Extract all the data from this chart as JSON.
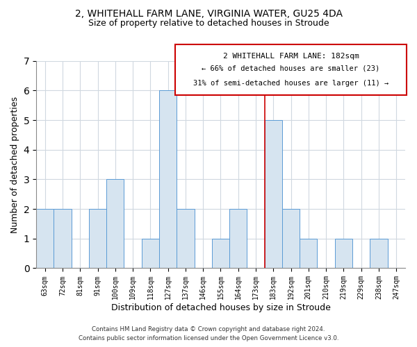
{
  "title_line1": "2, WHITEHALL FARM LANE, VIRGINIA WATER, GU25 4DA",
  "title_line2": "Size of property relative to detached houses in Stroude",
  "xlabel": "Distribution of detached houses by size in Stroude",
  "ylabel": "Number of detached properties",
  "categories": [
    "63sqm",
    "72sqm",
    "81sqm",
    "91sqm",
    "100sqm",
    "109sqm",
    "118sqm",
    "127sqm",
    "137sqm",
    "146sqm",
    "155sqm",
    "164sqm",
    "173sqm",
    "183sqm",
    "192sqm",
    "201sqm",
    "210sqm",
    "219sqm",
    "229sqm",
    "238sqm",
    "247sqm"
  ],
  "values": [
    2,
    2,
    0,
    2,
    3,
    0,
    1,
    6,
    2,
    0,
    1,
    2,
    0,
    5,
    2,
    1,
    0,
    1,
    0,
    1,
    0
  ],
  "bar_color": "#d6e4f0",
  "bar_edge_color": "#5b9bd5",
  "highlight_line_color": "#cc0000",
  "highlight_bar_index": 13,
  "ylim": [
    0,
    7
  ],
  "yticks": [
    0,
    1,
    2,
    3,
    4,
    5,
    6,
    7
  ],
  "annotation_title": "2 WHITEHALL FARM LANE: 182sqm",
  "annotation_line1": "← 66% of detached houses are smaller (23)",
  "annotation_line2": "31% of semi-detached houses are larger (11) →",
  "annotation_box_color": "#ffffff",
  "annotation_box_edge": "#cc0000",
  "footer_line1": "Contains HM Land Registry data © Crown copyright and database right 2024.",
  "footer_line2": "Contains public sector information licensed under the Open Government Licence v3.0.",
  "bg_color": "#ffffff",
  "plot_bg_color": "#ffffff",
  "grid_color": "#d0d8e0"
}
